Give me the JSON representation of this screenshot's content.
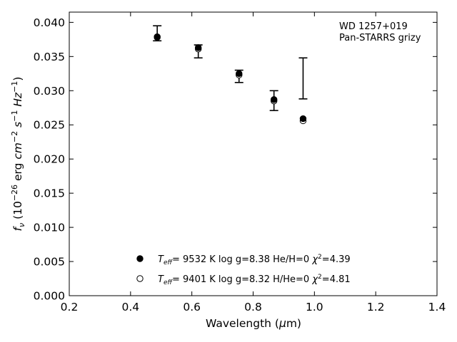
{
  "chart_data": {
    "type": "scatter",
    "xlabel": "Wavelength (μm)",
    "ylabel": "f_ν (10^-26 erg cm^-2 s^-1 Hz^-1)",
    "xlim": [
      0.2,
      1.4
    ],
    "ylim": [
      0.0,
      0.0415
    ],
    "x_ticks": [
      "0.2",
      "0.4",
      "0.6",
      "0.8",
      "1.0",
      "1.2",
      "1.4"
    ],
    "y_ticks": [
      "0.000",
      "0.005",
      "0.010",
      "0.015",
      "0.020",
      "0.025",
      "0.030",
      "0.035",
      "0.040"
    ],
    "annotation_lines": [
      "WD 1257+019",
      "Pan-STARRS grizy"
    ],
    "legend_placement": "lower-center",
    "observed": {
      "x": [
        0.487,
        0.621,
        0.754,
        0.868,
        0.963
      ],
      "y_low": [
        0.0373,
        0.0348,
        0.0312,
        0.0271,
        0.0288
      ],
      "y_high": [
        0.0395,
        0.0367,
        0.033,
        0.03,
        0.0348
      ]
    },
    "series": [
      {
        "name": "T_eff= 9532 K log g=8.38 He/H=0 χ²=4.39",
        "marker": "filled-circle",
        "x": [
          0.487,
          0.621,
          0.754,
          0.868,
          0.963
        ],
        "y": [
          0.0379,
          0.0363,
          0.0325,
          0.0287,
          0.0259
        ]
      },
      {
        "name": "T_eff= 9401 K log g=8.32 H/He=0 χ²=4.81",
        "marker": "open-circle",
        "x": [
          0.487,
          0.621,
          0.754,
          0.868,
          0.963
        ],
        "y": [
          0.0378,
          0.0361,
          0.0323,
          0.0285,
          0.0256
        ]
      }
    ],
    "legend": [
      {
        "marker": "filled-circle",
        "teff": "9532",
        "logg": "log g=8.38",
        "comp": "He/H=0",
        "chi": "4.39"
      },
      {
        "marker": "open-circle",
        "teff": "9401",
        "logg": "log g=8.32",
        "comp": "H/He=0",
        "chi": "4.81"
      }
    ]
  }
}
